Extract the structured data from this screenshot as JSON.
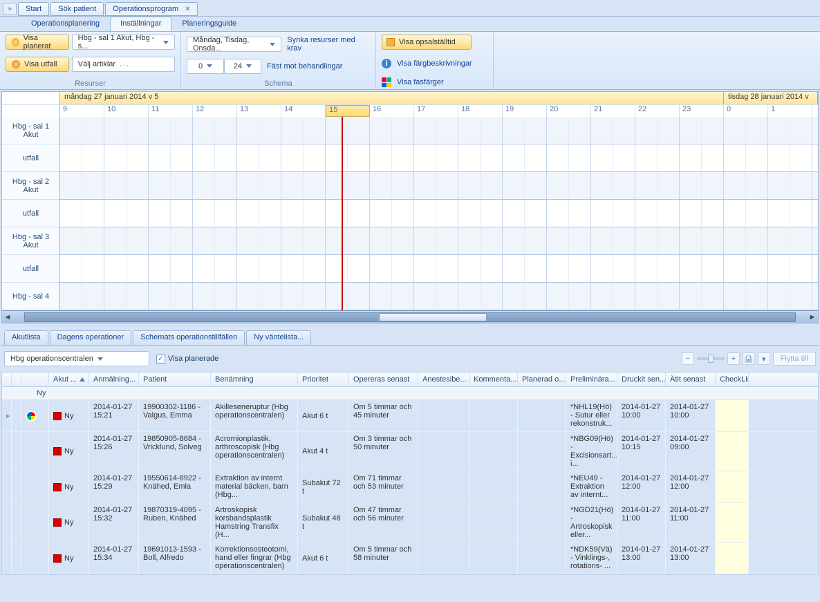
{
  "tabs": {
    "expand": "»",
    "start": "Start",
    "search": "Sök patient",
    "program": "Operationsprogram"
  },
  "subtabs": {
    "planning": "Operationsplanering",
    "settings": "Inställningar",
    "guide": "Planeringsguide"
  },
  "ribbon": {
    "visa_planerat": "Visa planerat",
    "visa_utfall": "Visa utfall",
    "room_filter": "Hbg - sal 1 Akut, Hbg - s...",
    "article_filter": "Välj artiklar",
    "group_resurser": "Resurser",
    "days_filter": "Måndag, Tisdag, Onsda...",
    "spin_from": "0",
    "spin_to": "24",
    "sync": "Synka resurser med krav",
    "snap": "Fäst mot behandlingar",
    "group_schema": "Schema",
    "visa_opsal": "Visa opsalställtid",
    "visa_farg": "Visa färgbeskrivningar",
    "visa_fas": "Visa fasfärger"
  },
  "schedule": {
    "day1": "måndag 27 januari 2014 v 5",
    "day2": "tisdag 28 januari 2014 v",
    "hours": [
      "9",
      "10",
      "11",
      "12",
      "13",
      "14",
      "15",
      "16",
      "17",
      "18",
      "19",
      "20",
      "21",
      "22",
      "23",
      "0",
      "1"
    ],
    "current_hour_index": 6,
    "rows": [
      "Hbg - sal 1 Akut",
      "utfall",
      "Hbg - sal 2 Akut",
      "utfall",
      "Hbg - sal 3 Akut",
      "utfall",
      "Hbg - sal 4"
    ]
  },
  "bottomtabs": {
    "akut": "Akutlista",
    "dagens": "Dagens operationer",
    "schemats": "Schemats operationstillfällen",
    "ny": "Ny väntelista..."
  },
  "filter": {
    "center": "Hbg operationscentralen",
    "show_planned": "Visa planerade",
    "flytta": "Flytta till"
  },
  "columns": [
    "",
    "",
    "",
    "Akut ...",
    "Anmälning...",
    "Patient",
    "Benämning",
    "Prioritet",
    "Opereras senast",
    "Anestesibe...",
    "Kommenta...",
    "Planerad o...",
    "Preliminära...",
    "Druckit sen...",
    "Ätit senast",
    "CheckLis"
  ],
  "group_label": "Ny",
  "rows": [
    {
      "status": "Ny",
      "anm": "2014-01-27 15:21",
      "patient": "19900302-1186 - Valgus, Emma",
      "ben": "Akilleseneruptur (Hbg operationscentralen)",
      "prio": "Akut 6 t",
      "senast": "Om 5 timmar och 45 minuter",
      "prelim": "*NHL19(Hö) - Sutur eller rekonstruk...",
      "druckit": "2014-01-27 10:00",
      "atit": "2014-01-27 10:00"
    },
    {
      "status": "Ny",
      "anm": "2014-01-27 15:26",
      "patient": "19850905-8684 - Vricklund, Solveg",
      "ben": "Acromionplastik, arthroscopisk (Hbg operationscentralen)",
      "prio": "Akut 4 t",
      "senast": "Om 3 timmar och 50 minuter",
      "prelim": "*NBG09(Hö) - Excisionsart... i...",
      "druckit": "2014-01-27 10:15",
      "atit": "2014-01-27 09:00"
    },
    {
      "status": "Ny",
      "anm": "2014-01-27 15:29",
      "patient": "19550614-8922 - Knähed, Emla",
      "ben": "Extraktion av internt material bäcken, barn (Hbg...",
      "prio": "Subakut 72 t",
      "senast": "Om 71 timmar och 53 minuter",
      "prelim": "*NEU49 - Extraktion av internt...",
      "druckit": "2014-01-27 12:00",
      "atit": "2014-01-27 12:00"
    },
    {
      "status": "Ny",
      "anm": "2014-01-27 15:32",
      "patient": "19870319-4095 - Ruben, Knähed",
      "ben": "Artroskopisk korsbandsplastik Hamstring Transfix (H...",
      "prio": "Subakut 48 t",
      "senast": "Om 47 timmar och 56 minuter",
      "prelim": "*NGD21(Hö) - Artroskopisk eller...",
      "druckit": "2014-01-27 11:00",
      "atit": "2014-01-27 11:00"
    },
    {
      "status": "Ny",
      "anm": "2014-01-27 15:34",
      "patient": "19691013-1593 - Boll, Alfredo",
      "ben": "Korrektionsosteotomi, hand eller fingrar (Hbg operationscentralen)",
      "prio": "Akut 6 t",
      "senast": "Om 5 timmar och 58 minuter",
      "prelim": "*NDK59(Vä) - Vinklings-, rotations- ...",
      "druckit": "2014-01-27 13:00",
      "atit": "2014-01-27 13:00"
    }
  ]
}
